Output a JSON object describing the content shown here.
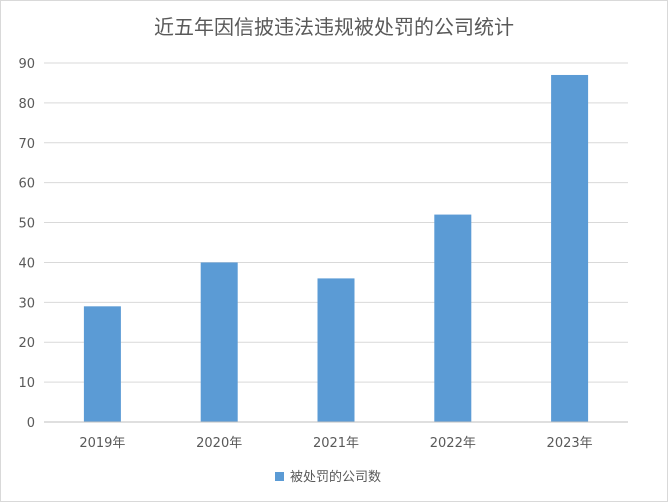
{
  "chart_data": {
    "type": "bar",
    "title": "近五年因信披违法违规被处罚的公司统计",
    "categories": [
      "2019年",
      "2020年",
      "2021年",
      "2022年",
      "2023年"
    ],
    "series": [
      {
        "name": "被处罚的公司数",
        "values": [
          29,
          40,
          36,
          52,
          87
        ],
        "color": "#5b9bd5"
      }
    ],
    "xlabel": "",
    "ylabel": "",
    "ylim": [
      0,
      90
    ],
    "yticks": [
      0,
      10,
      20,
      30,
      40,
      50,
      60,
      70,
      80,
      90
    ],
    "grid": true,
    "legend_position": "bottom",
    "colors": {
      "grid": "#d9d9d9",
      "axis": "#bfbfbf",
      "text": "#595959"
    }
  }
}
